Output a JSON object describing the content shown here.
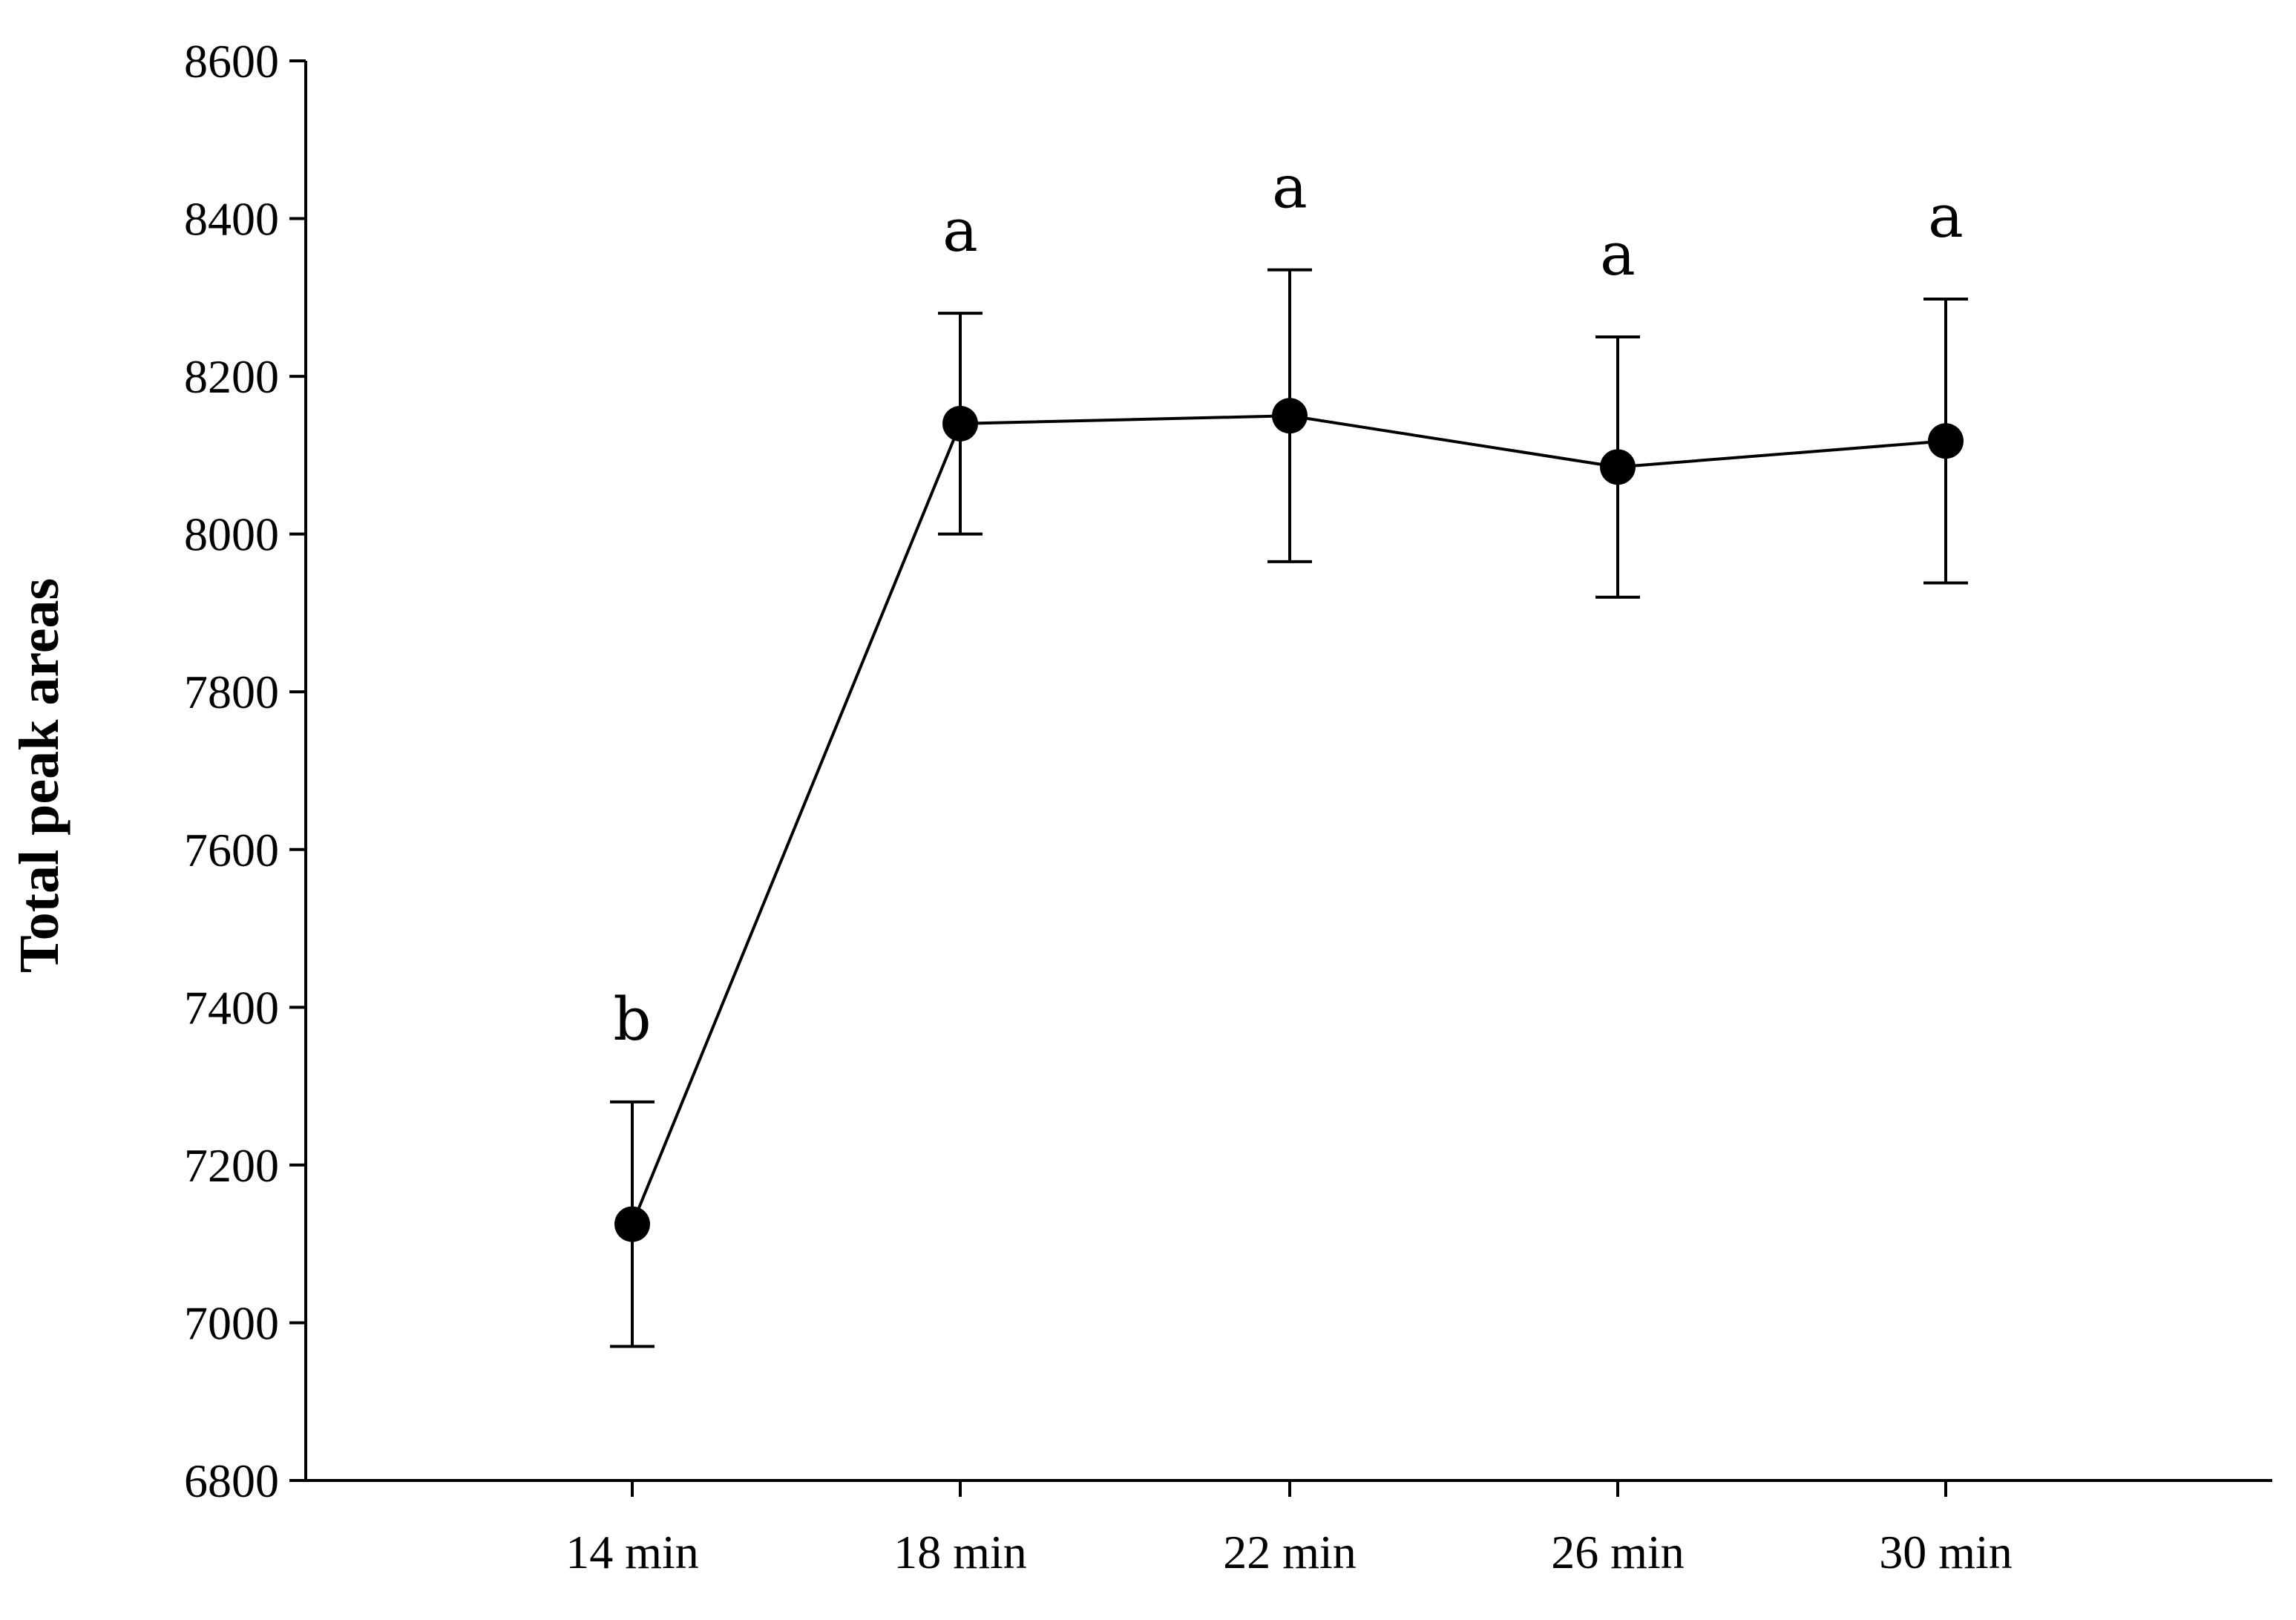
{
  "chart_data": {
    "type": "line",
    "title": "",
    "xlabel": "",
    "ylabel": "Total peak areas",
    "categories": [
      "14 min",
      "18 min",
      "22 min",
      "26 min",
      "30 min"
    ],
    "series": [
      {
        "values": [
          7125,
          8140,
          8150,
          8085,
          8118
        ],
        "error": [
          155,
          140,
          185,
          165,
          180
        ]
      }
    ],
    "annotations": [
      "b",
      "a",
      "a",
      "a",
      "a"
    ],
    "ylim": [
      6800,
      8600
    ],
    "yticks": [
      6800,
      7000,
      7200,
      7400,
      7600,
      7800,
      8000,
      8200,
      8400,
      8600
    ],
    "grid": false,
    "legend": "none",
    "colors": {
      "line": "#000000",
      "marker": "#000000"
    }
  }
}
